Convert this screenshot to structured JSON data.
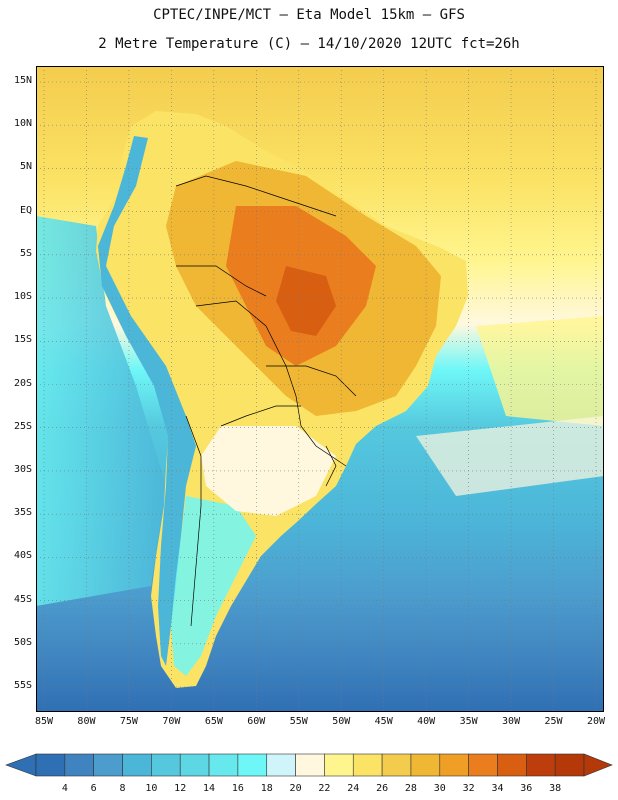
{
  "header": {
    "line1": "CPTEC/INPE/MCT –  Eta Model 15km – GFS",
    "line2": "2 Metre Temperature (C) – 14/10/2020 12UTC fct=26h"
  },
  "map": {
    "region": "South America",
    "lat_labels": [
      "15N",
      "10N",
      "5N",
      "EQ",
      "5S",
      "10S",
      "15S",
      "20S",
      "25S",
      "30S",
      "35S",
      "40S",
      "45S",
      "50S",
      "55S"
    ],
    "lon_labels": [
      "85W",
      "80W",
      "75W",
      "70W",
      "65W",
      "60W",
      "55W",
      "50W",
      "45W",
      "40W",
      "35W",
      "30W",
      "25W",
      "20W"
    ],
    "lat_values": [
      15,
      10,
      5,
      0,
      -5,
      -10,
      -15,
      -20,
      -25,
      -30,
      -35,
      -40,
      -45,
      -50,
      -55
    ],
    "lon_values": [
      -85,
      -80,
      -75,
      -70,
      -65,
      -60,
      -55,
      -50,
      -45,
      -40,
      -35,
      -30,
      -25,
      -20
    ]
  },
  "colorbar": {
    "labels": [
      "4",
      "6",
      "8",
      "10",
      "12",
      "14",
      "16",
      "18",
      "20",
      "22",
      "24",
      "26",
      "28",
      "30",
      "32",
      "34",
      "36",
      "38"
    ],
    "colors": [
      "#2f6fb3",
      "#3f84c0",
      "#4c9ccd",
      "#4cb6d9",
      "#55c8de",
      "#5dd7e4",
      "#66e8ec",
      "#6ff7f7",
      "#cff5fb",
      "#fff8df",
      "#fff58e",
      "#fbe365",
      "#f4cc4d",
      "#efb733",
      "#ef9e26",
      "#ea7e1f",
      "#d85e12",
      "#be3d0c",
      "#b43808"
    ],
    "low_arrow_color": "#2f6fb3",
    "high_arrow_color": "#b43808"
  }
}
